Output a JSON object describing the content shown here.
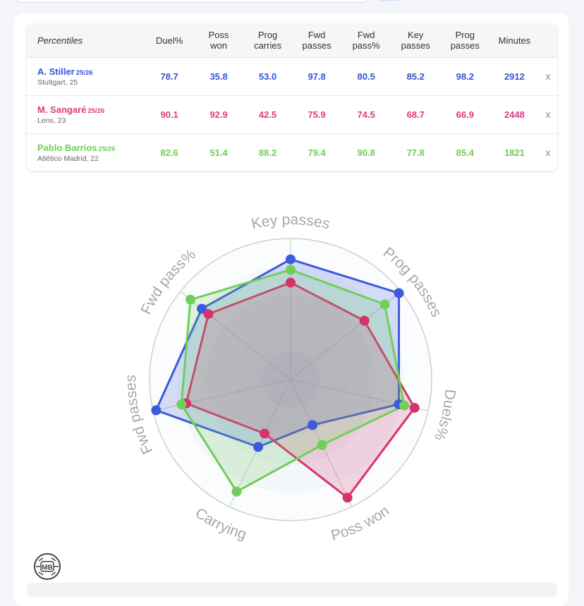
{
  "table": {
    "header": {
      "percentiles": "Percentiles",
      "columns": [
        {
          "line1": "Duel%",
          "line2": ""
        },
        {
          "line1": "Poss",
          "line2": "won"
        },
        {
          "line1": "Prog",
          "line2": "carries"
        },
        {
          "line1": "Fwd",
          "line2": "passes"
        },
        {
          "line1": "Fwd",
          "line2": "pass%"
        },
        {
          "line1": "Key",
          "line2": "passes"
        },
        {
          "line1": "Prog",
          "line2": "passes"
        },
        {
          "line1": "Minutes",
          "line2": ""
        }
      ]
    },
    "players": [
      {
        "name": "A. Stiller",
        "season": "25/26",
        "club": "Stuttgart, 25",
        "color": "#3556d4",
        "values": [
          "78.7",
          "35.8",
          "53.0",
          "97.8",
          "80.5",
          "85.2",
          "98.2",
          "2912"
        ],
        "remove": "x"
      },
      {
        "name": "M. Sangaré",
        "season": "25/26",
        "club": "Lens, 23",
        "color": "#dc3b82",
        "values": [
          "90.1",
          "92.9",
          "42.5",
          "75.9",
          "74.5",
          "68.7",
          "66.9",
          "2448"
        ],
        "remove": "x"
      },
      {
        "name": "Pablo Barrios",
        "season": "25/26",
        "club": "Atlético Madrid, 22",
        "color": "#72cc58",
        "values": [
          "82.6",
          "51.4",
          "88.2",
          "79.4",
          "90.8",
          "77.8",
          "85.4",
          "1821"
        ],
        "remove": "x"
      }
    ]
  },
  "chart_data": {
    "type": "radar",
    "axes": [
      "Key passes",
      "Prog passes",
      "Duels%",
      "Poss won",
      "Carrying",
      "Fwd passes",
      "Fwd pass%"
    ],
    "range": [
      0,
      100
    ],
    "series": [
      {
        "name": "A. Stiller",
        "color": "#3b5bdb",
        "values": [
          85.2,
          98.2,
          78.7,
          35.8,
          53.0,
          97.8,
          80.5
        ]
      },
      {
        "name": "M. Sangaré",
        "color": "#d6336c",
        "values": [
          68.7,
          66.9,
          90.1,
          92.9,
          42.5,
          75.9,
          74.5
        ]
      },
      {
        "name": "Pablo Barrios",
        "color": "#6fcf5a",
        "values": [
          77.8,
          85.4,
          82.6,
          51.4,
          88.2,
          79.4,
          90.8
        ]
      }
    ]
  },
  "logo": {
    "text": "MB",
    "icon": "mb-ball-logo"
  }
}
